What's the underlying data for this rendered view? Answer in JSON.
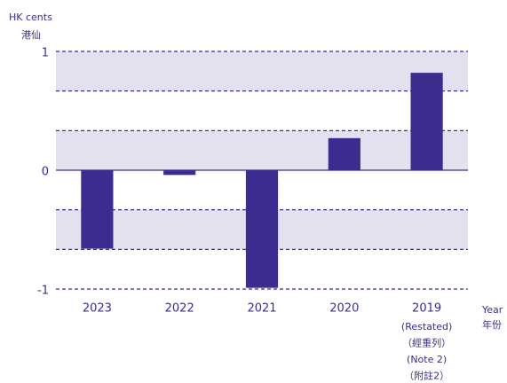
{
  "chart_data": {
    "type": "bar",
    "y_label": [
      "HK cents",
      "港仙"
    ],
    "x_label": [
      "Year",
      "年份"
    ],
    "categories": [
      "2023",
      "2022",
      "2021",
      "2020",
      "2019"
    ],
    "category_notes": [
      null,
      null,
      null,
      null,
      [
        "(Restated)",
        "（經重列）",
        "(Note 2)",
        "（附註2）"
      ]
    ],
    "values": [
      -0.66,
      -0.04,
      -0.99,
      0.27,
      0.82
    ],
    "color": "#3a2d8f",
    "ylim": [
      -1,
      1
    ],
    "yticks": [
      -1,
      0,
      1
    ],
    "grid_lines": [
      1,
      0.667,
      0.333,
      -0.333,
      -0.667,
      -1
    ],
    "band_color": "#e3e1f0",
    "grid": true
  }
}
